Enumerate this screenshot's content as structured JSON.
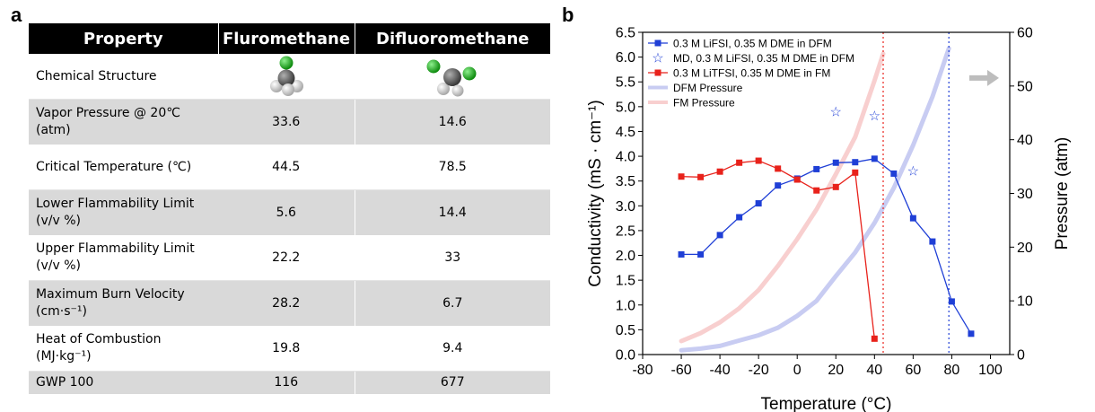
{
  "panels": {
    "a": "a",
    "b": "b"
  },
  "table": {
    "headers": [
      "Property",
      "Fluromethane",
      "Difluoromethane"
    ],
    "chemical_structure_label": "Chemical Structure",
    "rows": [
      {
        "label": "Vapor Pressure @ 20℃ (atm)",
        "fm": "33.6",
        "dfm": "14.6"
      },
      {
        "label": "Critical Temperature (℃)",
        "fm": "44.5",
        "dfm": "78.5"
      },
      {
        "label": "Lower Flammability Limit (v/v %)",
        "fm": "5.6",
        "dfm": "14.4"
      },
      {
        "label": "Upper Flammability Limit (v/v %)",
        "fm": "22.2",
        "dfm": "33"
      },
      {
        "label": "Maximum Burn Velocity (cm·s⁻¹)",
        "fm": "28.2",
        "dfm": "6.7"
      },
      {
        "label": "Heat of Combustion (MJ·kg⁻¹)",
        "fm": "19.8",
        "dfm": "9.4"
      },
      {
        "label": "GWP 100",
        "fm": "116",
        "dfm": "677"
      }
    ]
  },
  "chart_data": {
    "type": "line",
    "xlabel": "Temperature (°C)",
    "ylabel": "Conductivity (mS · cm⁻¹)",
    "y2label": "Pressure (atm)",
    "xlim": [
      -80,
      110
    ],
    "ylim": [
      0,
      6.5
    ],
    "y2lim": [
      0,
      60
    ],
    "x_ticks": [
      -80,
      -60,
      -40,
      -20,
      0,
      20,
      40,
      60,
      80,
      100
    ],
    "y_ticks": [
      0.0,
      0.5,
      1.0,
      1.5,
      2.0,
      2.5,
      3.0,
      3.5,
      4.0,
      4.5,
      5.0,
      5.5,
      6.0,
      6.5
    ],
    "y2_ticks": [
      0,
      10,
      20,
      30,
      40,
      50,
      60
    ],
    "x_tick_labels": [
      "-80",
      "-60",
      "-40",
      "-20",
      "0",
      "20",
      "40",
      "60",
      "80",
      "100"
    ],
    "y_tick_labels": [
      "0.0",
      "0.5",
      "1.0",
      "1.5",
      "2.0",
      "2.5",
      "3.0",
      "3.5",
      "4.0",
      "4.5",
      "5.0",
      "5.5",
      "6.0",
      "6.5"
    ],
    "y2_tick_labels": [
      "0",
      "10",
      "20",
      "30",
      "40",
      "50",
      "60"
    ],
    "legend_position": "top-left",
    "series": [
      {
        "name": "0.3 M LiFSI, 0.35 M DME in DFM",
        "color": "#1f3fd6",
        "marker": "square",
        "axis": "left",
        "x": [
          -60,
          -50,
          -40,
          -30,
          -20,
          -10,
          0,
          10,
          20,
          30,
          40,
          50,
          60,
          70,
          80,
          90
        ],
        "y": [
          2.02,
          2.02,
          2.41,
          2.77,
          3.05,
          3.41,
          3.55,
          3.74,
          3.87,
          3.88,
          3.95,
          3.65,
          2.75,
          2.28,
          1.07,
          0.42
        ]
      },
      {
        "name": "MD, 0.3 M LiFSI, 0.35 M DME in DFM",
        "color": "#1f3fd6",
        "marker": "star",
        "axis": "left",
        "x": [
          20,
          40,
          60
        ],
        "y": [
          4.9,
          4.82,
          3.7
        ]
      },
      {
        "name": "0.3 M LiTFSI, 0.35 M DME in FM",
        "color": "#e8221b",
        "marker": "square",
        "axis": "left",
        "x": [
          -60,
          -50,
          -40,
          -30,
          -20,
          -10,
          0,
          10,
          20,
          30,
          40
        ],
        "y": [
          3.59,
          3.58,
          3.69,
          3.87,
          3.91,
          3.75,
          3.53,
          3.31,
          3.38,
          3.67,
          0.32
        ]
      },
      {
        "name": "DFM Pressure",
        "color": "#c8ccf2",
        "marker": "none",
        "axis": "right",
        "x": [
          -60,
          -50,
          -40,
          -30,
          -20,
          -10,
          0,
          10,
          20,
          30,
          40,
          50,
          60,
          70,
          78.5
        ],
        "y": [
          0.8,
          1.1,
          1.6,
          2.6,
          3.6,
          5.0,
          7.2,
          10.0,
          14.6,
          19.0,
          24.5,
          31.0,
          39.0,
          48.0,
          57.0
        ]
      },
      {
        "name": "FM Pressure",
        "color": "#f8cfcf",
        "marker": "none",
        "axis": "right",
        "x": [
          -60,
          -50,
          -40,
          -30,
          -20,
          -10,
          0,
          10,
          20,
          30,
          40,
          44.5
        ],
        "y": [
          2.5,
          4.0,
          6.0,
          8.6,
          12.0,
          16.5,
          21.5,
          27.0,
          33.6,
          40.5,
          51.0,
          56.0
        ]
      }
    ],
    "reference_lines": [
      {
        "x": 44.5,
        "color": "#e8221b"
      },
      {
        "x": 78.5,
        "color": "#1f3fd6"
      }
    ],
    "arrow": {
      "direction": "right",
      "axis_hint": "right",
      "color": "#bdbdbd"
    }
  }
}
